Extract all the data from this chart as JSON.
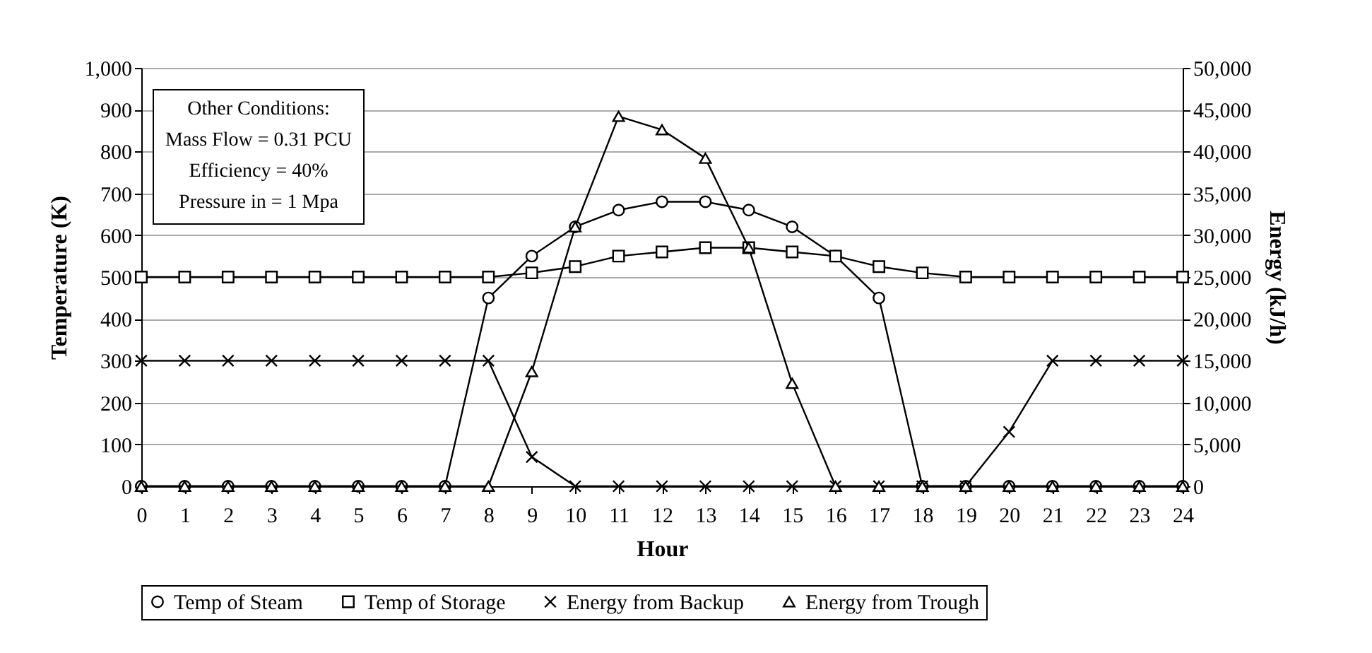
{
  "chart_data": {
    "type": "line",
    "xlabel": "Hour",
    "ylabel": "Temperature (K)",
    "y2label": "Energy (kJ/h)",
    "x": [
      0,
      1,
      2,
      3,
      4,
      5,
      6,
      7,
      8,
      9,
      10,
      11,
      12,
      13,
      14,
      15,
      16,
      17,
      18,
      19,
      20,
      21,
      22,
      23,
      24
    ],
    "xlim": [
      0,
      24
    ],
    "xticks": [
      0,
      1,
      2,
      3,
      4,
      5,
      6,
      7,
      8,
      9,
      10,
      11,
      12,
      13,
      14,
      15,
      16,
      17,
      18,
      19,
      20,
      21,
      22,
      23,
      24
    ],
    "ylim": [
      0,
      1000
    ],
    "yticks": [
      0,
      100,
      200,
      300,
      400,
      500,
      600,
      700,
      800,
      900,
      {
        "value": 1000,
        "label": "1,000"
      }
    ],
    "y2lim": [
      0,
      50000
    ],
    "y2ticks": [
      0,
      {
        "value": 5000,
        "label": "5,000"
      },
      {
        "value": 10000,
        "label": "10,000"
      },
      {
        "value": 15000,
        "label": "15,000"
      },
      {
        "value": 20000,
        "label": "20,000"
      },
      {
        "value": 25000,
        "label": "25,000"
      },
      {
        "value": 30000,
        "label": "30,000"
      },
      {
        "value": 35000,
        "label": "35,000"
      },
      {
        "value": 40000,
        "label": "40,000"
      },
      {
        "value": 45000,
        "label": "45,000"
      },
      {
        "value": 50000,
        "label": "50,000"
      }
    ],
    "grid": "y",
    "legend": "bottom",
    "line_style": "solid",
    "annotations": [
      "Other Conditions:",
      "Mass Flow = 0.31 PCU",
      "Efficiency = 40%",
      "Pressure in = 1 Mpa"
    ],
    "series": [
      {
        "name": "Temp of Steam",
        "color": "#000000",
        "marker": "circle",
        "values": [
          0,
          0,
          0,
          0,
          0,
          0,
          0,
          0,
          450,
          550,
          620,
          660,
          680,
          680,
          660,
          620,
          550,
          450,
          0,
          0,
          0,
          0,
          0,
          0,
          0
        ]
      },
      {
        "name": "Temp of Storage",
        "color": "#000000",
        "marker": "square",
        "values": [
          500,
          500,
          500,
          500,
          500,
          500,
          500,
          500,
          500,
          510,
          525,
          550,
          560,
          570,
          570,
          560,
          550,
          525,
          510,
          500,
          500,
          500,
          500,
          500,
          500
        ]
      },
      {
        "name": "Energy from Backup",
        "color": "#000000",
        "marker": "cross",
        "axis": "y2",
        "values": [
          15000,
          15000,
          15000,
          15000,
          15000,
          15000,
          15000,
          15000,
          15000,
          3500,
          0,
          0,
          0,
          0,
          0,
          0,
          0,
          0,
          0,
          0,
          6500,
          15000,
          15000,
          15000,
          15000
        ]
      },
      {
        "name": "Energy from Trough",
        "color": "#000000",
        "marker": "triangle",
        "axis": "y2",
        "values": [
          0,
          0,
          0,
          0,
          0,
          0,
          0,
          0,
          0,
          13700,
          31000,
          44200,
          42600,
          39200,
          28500,
          12300,
          0,
          0,
          0,
          0,
          0,
          0,
          0,
          0,
          0
        ]
      }
    ]
  }
}
